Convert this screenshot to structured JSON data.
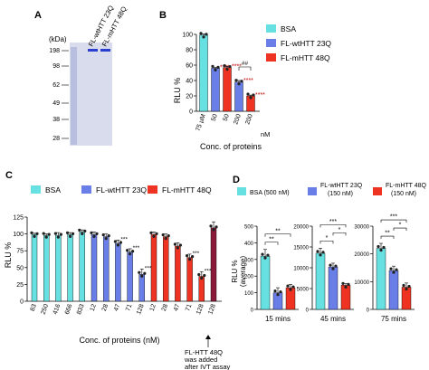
{
  "panels": {
    "A": {
      "letter": "A",
      "unit": "(kDa)",
      "markers": [
        "198",
        "98",
        "62",
        "49",
        "38",
        "28"
      ],
      "lanes": [
        "FL-wtHTT 23Q",
        "FL-mHTT 48Q"
      ]
    },
    "B": {
      "letter": "B",
      "legend": [
        "BSA",
        "FL-wtHTT 23Q",
        "FL-mHTT 48Q"
      ],
      "unit_label": "nM",
      "sig": {
        "bsa_vs": "****",
        "hash": "##"
      }
    },
    "C": {
      "letter": "C",
      "legend": [
        "BSA",
        "FL-wtHTT 23Q",
        "FL-mHTT 48Q"
      ],
      "annotation": [
        "FL-HTT 48Q",
        "was added",
        "after IVT assay"
      ]
    },
    "D": {
      "letter": "D",
      "legend": [
        [
          "BSA (500 nM)"
        ],
        [
          "FL-wtHTT 23Q",
          "(150 nM)"
        ],
        [
          "FL-mHTT 48Q",
          "(150 nM)"
        ]
      ],
      "ylabel": [
        "RLU %",
        "(average)"
      ]
    }
  },
  "colors": {
    "bsa": "#66e0e0",
    "wt": "#6a7ee8",
    "m": "#ee3323",
    "post": "#8b1a3a",
    "gel": "#d9dcec",
    "band": "#2a3fd0"
  },
  "chart_data": [
    {
      "type": "bar",
      "panel": "B",
      "title": "",
      "xlabel": "Conc. of proteins",
      "ylabel": "RLU %",
      "ylim": [
        0,
        100
      ],
      "yticks": [
        0,
        20,
        40,
        60,
        80,
        100
      ],
      "categories": [
        "75 µM",
        "50",
        "50",
        "200",
        "200"
      ],
      "unit_after": "nM",
      "series_of_bar": [
        "BSA",
        "FL-wtHTT 23Q",
        "FL-mHTT 48Q",
        "FL-wtHTT 23Q",
        "FL-mHTT 48Q"
      ],
      "values": [
        99,
        56,
        57,
        38,
        20
      ],
      "errors": [
        1.5,
        1,
        1.5,
        2,
        1
      ],
      "significance": [
        "",
        "****",
        "****",
        "****",
        "****"
      ]
    },
    {
      "type": "bar",
      "panel": "C",
      "xlabel": "Conc. of proteins (nM)",
      "ylabel": "RLU %",
      "ylim": [
        0,
        125
      ],
      "yticks": [
        0,
        25,
        50,
        75,
        100,
        125
      ],
      "categories": [
        "83",
        "250",
        "416",
        "666",
        "833",
        "12",
        "28",
        "47",
        "71",
        "128",
        "12",
        "28",
        "47",
        "71",
        "128",
        "128"
      ],
      "series_of_bar": [
        "BSA",
        "BSA",
        "BSA",
        "BSA",
        "BSA",
        "FL-wtHTT 23Q",
        "FL-wtHTT 23Q",
        "FL-wtHTT 23Q",
        "FL-wtHTT 23Q",
        "FL-wtHTT 23Q",
        "FL-mHTT 48Q",
        "FL-mHTT 48Q",
        "FL-mHTT 48Q",
        "FL-mHTT 48Q",
        "FL-mHTT 48Q",
        "FL-HTT 48Q (post)"
      ],
      "values": [
        99,
        98,
        98,
        99,
        103,
        99,
        96,
        86,
        73,
        40,
        99,
        96,
        82,
        65,
        37,
        109
      ],
      "errors": [
        2,
        2,
        4,
        3,
        3,
        4,
        4,
        5,
        5,
        8,
        4,
        4,
        5,
        5,
        7,
        9
      ],
      "significance": [
        "",
        "",
        "",
        "",
        "",
        "",
        "",
        "***",
        "***",
        "****",
        "",
        "",
        "",
        "***",
        "****",
        ""
      ]
    },
    {
      "type": "bar",
      "panel": "D",
      "subplots": [
        {
          "xlabel": "15 mins",
          "ylim": [
            0,
            500
          ],
          "yticks": [
            0,
            100,
            200,
            300,
            400,
            500
          ],
          "series": [
            "BSA (500 nM)",
            "FL-wtHTT 23Q (150 nM)",
            "FL-mHTT 48Q (150 nM)"
          ],
          "values": [
            320,
            100,
            130
          ],
          "errors": [
            40,
            30,
            20
          ],
          "significance": [
            {
              "from": 0,
              "to": 1,
              "label": "**"
            },
            {
              "from": 0,
              "to": 2,
              "label": "**"
            }
          ]
        },
        {
          "xlabel": "45 mins",
          "ylim": [
            0,
            20000
          ],
          "yticks": [
            0,
            5000,
            10000,
            15000,
            20000
          ],
          "series": [
            "BSA (500 nM)",
            "FL-wtHTT 23Q (150 nM)",
            "FL-mHTT 48Q (150 nM)"
          ],
          "values": [
            13500,
            10200,
            5800
          ],
          "errors": [
            1200,
            900,
            400
          ],
          "significance": [
            {
              "from": 0,
              "to": 1,
              "label": "*"
            },
            {
              "from": 1,
              "to": 2,
              "label": "*"
            },
            {
              "from": 0,
              "to": 2,
              "label": "***"
            }
          ]
        },
        {
          "xlabel": "75 mins",
          "ylim": [
            0,
            30000
          ],
          "yticks": [
            0,
            10000,
            20000,
            30000
          ],
          "series": [
            "BSA (500 nM)",
            "FL-wtHTT 23Q (150 nM)",
            "FL-mHTT 48Q (150 nM)"
          ],
          "values": [
            22000,
            14000,
            8000
          ],
          "errors": [
            1800,
            1600,
            1500
          ],
          "significance": [
            {
              "from": 0,
              "to": 1,
              "label": "**"
            },
            {
              "from": 1,
              "to": 2,
              "label": "*"
            },
            {
              "from": 0,
              "to": 2,
              "label": "***"
            }
          ]
        }
      ]
    }
  ]
}
